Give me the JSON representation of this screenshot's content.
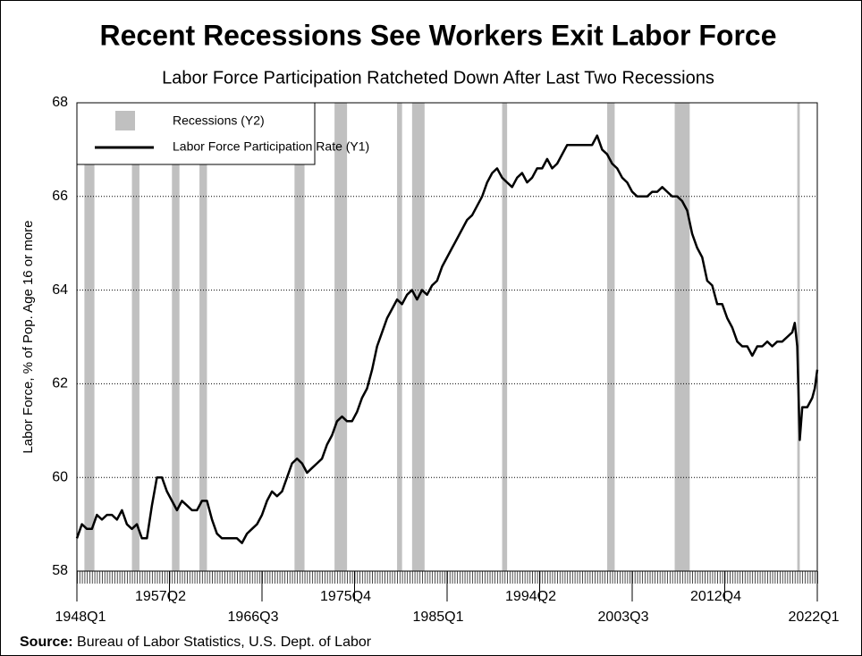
{
  "chart_data": {
    "type": "line",
    "title": "Recent Recessions See Workers Exit Labor Force",
    "subtitle": "Labor Force Participation Ratcheted Down After Last Two Recessions",
    "y_label": "Labor Force, % of Pop. Age 16 or more",
    "source_label": "Source:",
    "source": "Bureau of Labor Statistics, U.S. Dept. of Labor",
    "xlim": [
      1948,
      2022
    ],
    "xticks": [
      {
        "value": 1948,
        "label": "1948Q1"
      },
      {
        "value": 1957.25,
        "label": "1957Q2"
      },
      {
        "value": 1966.5,
        "label": "1966Q3"
      },
      {
        "value": 1975.75,
        "label": "1975Q4"
      },
      {
        "value": 1985,
        "label": "1985Q1"
      },
      {
        "value": 1994.25,
        "label": "1994Q2"
      },
      {
        "value": 2003.5,
        "label": "2003Q3"
      },
      {
        "value": 2012.75,
        "label": "2012Q4"
      },
      {
        "value": 2022,
        "label": "2022Q1"
      }
    ],
    "ylim": [
      58,
      68
    ],
    "yticks": [
      58,
      60,
      62,
      64,
      66,
      68
    ],
    "grid": true,
    "legend": "top-left",
    "series": [
      {
        "name": "Recessions (Y2)",
        "color": "#c0c0c0",
        "axis": "y2",
        "intervals": [
          [
            1948.75,
            1949.75
          ],
          [
            1953.5,
            1954.25
          ],
          [
            1957.5,
            1958.25
          ],
          [
            1960.25,
            1961.0
          ],
          [
            1969.75,
            1970.75
          ],
          [
            1973.75,
            1975.0
          ],
          [
            1980.0,
            1980.5
          ],
          [
            1981.5,
            1982.75
          ],
          [
            1990.5,
            1991.0
          ],
          [
            2001.0,
            2001.75
          ],
          [
            2007.75,
            2009.25
          ],
          [
            2020.0,
            2020.25
          ]
        ]
      },
      {
        "name": "Labor Force Participation Rate (Y1)",
        "color": "#000000",
        "x": [
          1948.0,
          1948.5,
          1949.0,
          1949.5,
          1950.0,
          1950.5,
          1951.0,
          1951.5,
          1952.0,
          1952.5,
          1953.0,
          1953.5,
          1954.0,
          1954.5,
          1955.0,
          1955.5,
          1956.0,
          1956.5,
          1957.0,
          1957.5,
          1958.0,
          1958.5,
          1959.0,
          1959.5,
          1960.0,
          1960.5,
          1961.0,
          1961.5,
          1962.0,
          1962.5,
          1963.0,
          1963.5,
          1964.0,
          1964.5,
          1965.0,
          1965.5,
          1966.0,
          1966.5,
          1967.0,
          1967.5,
          1968.0,
          1968.5,
          1969.0,
          1969.5,
          1970.0,
          1970.5,
          1971.0,
          1971.5,
          1972.0,
          1972.5,
          1973.0,
          1973.5,
          1974.0,
          1974.5,
          1975.0,
          1975.5,
          1976.0,
          1976.5,
          1977.0,
          1977.5,
          1978.0,
          1978.5,
          1979.0,
          1979.5,
          1980.0,
          1980.5,
          1981.0,
          1981.5,
          1982.0,
          1982.5,
          1983.0,
          1983.5,
          1984.0,
          1984.5,
          1985.0,
          1985.5,
          1986.0,
          1986.5,
          1987.0,
          1987.5,
          1988.0,
          1988.5,
          1989.0,
          1989.5,
          1990.0,
          1990.5,
          1991.0,
          1991.5,
          1992.0,
          1992.5,
          1993.0,
          1993.5,
          1994.0,
          1994.5,
          1995.0,
          1995.5,
          1996.0,
          1996.5,
          1997.0,
          1997.5,
          1998.0,
          1998.5,
          1999.0,
          1999.5,
          2000.0,
          2000.5,
          2001.0,
          2001.5,
          2002.0,
          2002.5,
          2003.0,
          2003.5,
          2004.0,
          2004.5,
          2005.0,
          2005.5,
          2006.0,
          2006.5,
          2007.0,
          2007.5,
          2008.0,
          2008.5,
          2009.0,
          2009.5,
          2010.0,
          2010.5,
          2011.0,
          2011.5,
          2012.0,
          2012.5,
          2013.0,
          2013.5,
          2014.0,
          2014.5,
          2015.0,
          2015.5,
          2016.0,
          2016.5,
          2017.0,
          2017.5,
          2018.0,
          2018.5,
          2019.0,
          2019.5,
          2019.75,
          2020.0,
          2020.25,
          2020.5,
          2021.0,
          2021.5,
          2021.75,
          2022.0
        ],
        "values": [
          58.7,
          59.0,
          58.9,
          58.9,
          59.2,
          59.1,
          59.2,
          59.2,
          59.1,
          59.3,
          59.0,
          58.9,
          59.0,
          58.7,
          58.7,
          59.4,
          60.0,
          60.0,
          59.7,
          59.5,
          59.3,
          59.5,
          59.4,
          59.3,
          59.3,
          59.5,
          59.5,
          59.1,
          58.8,
          58.7,
          58.7,
          58.7,
          58.7,
          58.6,
          58.8,
          58.9,
          59.0,
          59.2,
          59.5,
          59.7,
          59.6,
          59.7,
          60.0,
          60.3,
          60.4,
          60.3,
          60.1,
          60.2,
          60.3,
          60.4,
          60.7,
          60.9,
          61.2,
          61.3,
          61.2,
          61.2,
          61.4,
          61.7,
          61.9,
          62.3,
          62.8,
          63.1,
          63.4,
          63.6,
          63.8,
          63.7,
          63.9,
          64.0,
          63.8,
          64.0,
          63.9,
          64.1,
          64.2,
          64.5,
          64.7,
          64.9,
          65.1,
          65.3,
          65.5,
          65.6,
          65.8,
          66.0,
          66.3,
          66.5,
          66.6,
          66.4,
          66.3,
          66.2,
          66.4,
          66.5,
          66.3,
          66.4,
          66.6,
          66.6,
          66.8,
          66.6,
          66.7,
          66.9,
          67.1,
          67.1,
          67.1,
          67.1,
          67.1,
          67.1,
          67.3,
          67.0,
          66.9,
          66.7,
          66.6,
          66.4,
          66.3,
          66.1,
          66.0,
          66.0,
          66.0,
          66.1,
          66.1,
          66.2,
          66.1,
          66.0,
          66.0,
          65.9,
          65.7,
          65.2,
          64.9,
          64.7,
          64.2,
          64.1,
          63.7,
          63.7,
          63.4,
          63.2,
          62.9,
          62.8,
          62.8,
          62.6,
          62.8,
          62.8,
          62.9,
          62.8,
          62.9,
          62.9,
          63.0,
          63.1,
          63.3,
          62.8,
          60.8,
          61.5,
          61.5,
          61.7,
          61.9,
          62.3
        ]
      }
    ]
  }
}
